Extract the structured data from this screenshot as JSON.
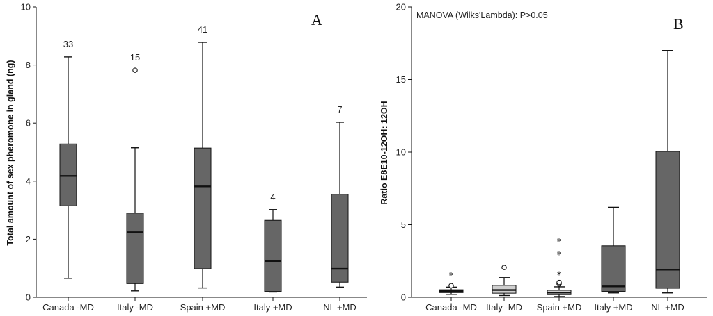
{
  "chart_data": [
    {
      "type": "box",
      "panel_label": "A",
      "ylabel": "Total amount of sex pheromone in gland (ng)",
      "xlabel": "",
      "ylim": [
        0,
        10
      ],
      "yticks": [
        "0",
        "2",
        "4",
        "6",
        "8",
        "10"
      ],
      "categories": [
        "Canada -MD",
        "Italy -MD",
        "Spain +MD",
        "Italy +MD",
        "NL +MD"
      ],
      "colors": {
        "box": "#666666",
        "box_light": "#cfcfcf",
        "line": "#111111"
      },
      "boxes": [
        {
          "category": "Canada -MD",
          "n": "33",
          "min": 0.65,
          "q1": 3.15,
          "median": 4.18,
          "q3": 5.28,
          "max": 8.28,
          "outliers": [],
          "extremes": []
        },
        {
          "category": "Italy -MD",
          "n": "15",
          "min": 0.22,
          "q1": 0.47,
          "median": 2.24,
          "q3": 2.9,
          "max": 5.15,
          "outliers": [
            7.82
          ],
          "extremes": []
        },
        {
          "category": "Spain +MD",
          "n": "41",
          "min": 0.32,
          "q1": 0.98,
          "median": 3.82,
          "q3": 5.14,
          "max": 8.78,
          "outliers": [],
          "extremes": []
        },
        {
          "category": "Italy +MD",
          "n": "4",
          "min": 0.18,
          "q1": 0.2,
          "median": 1.25,
          "q3": 2.65,
          "max": 3.02,
          "outliers": [],
          "extremes": []
        },
        {
          "category": "NL +MD",
          "n": "7",
          "min": 0.35,
          "q1": 0.52,
          "median": 0.98,
          "q3": 3.55,
          "max": 6.03,
          "outliers": [],
          "extremes": []
        }
      ]
    },
    {
      "type": "box",
      "panel_label": "B",
      "annotation": "MANOVA (Wilks'Lambda): P>0.05",
      "ylabel": "Ratio E8E10-12OH: 12OH",
      "xlabel": "",
      "ylim": [
        0,
        20
      ],
      "yticks": [
        "0",
        "5",
        "10",
        "15",
        "20"
      ],
      "categories": [
        "Canada -MD",
        "Italy -MD",
        "Spain +MD",
        "Italy +MD",
        "NL +MD"
      ],
      "colors": {
        "box": "#666666",
        "box_light": "#cfcfcf",
        "line": "#111111"
      },
      "boxes": [
        {
          "category": "Canada -MD",
          "n": "",
          "min": 0.2,
          "q1": 0.32,
          "median": 0.42,
          "q3": 0.52,
          "max": 0.7,
          "outliers": [
            0.8
          ],
          "extremes": [
            1.5
          ],
          "light": true
        },
        {
          "category": "Italy -MD",
          "n": "",
          "min": 0.12,
          "q1": 0.28,
          "median": 0.5,
          "q3": 0.82,
          "max": 1.35,
          "outliers": [
            2.05
          ],
          "extremes": [],
          "light": true
        },
        {
          "category": "Spain +MD",
          "n": "",
          "min": 0.05,
          "q1": 0.18,
          "median": 0.32,
          "q3": 0.48,
          "max": 0.72,
          "outliers": [
            0.92,
            1.02
          ],
          "extremes": [
            1.55,
            2.95,
            3.85
          ],
          "light": true
        },
        {
          "category": "Italy +MD",
          "n": "",
          "min": 0.3,
          "q1": 0.4,
          "median": 0.75,
          "q3": 3.55,
          "max": 6.2,
          "outliers": [],
          "extremes": [],
          "light": false
        },
        {
          "category": "NL +MD",
          "n": "",
          "min": 0.3,
          "q1": 0.62,
          "median": 1.9,
          "q3": 10.05,
          "max": 17.0,
          "outliers": [],
          "extremes": [],
          "light": false
        }
      ]
    }
  ]
}
